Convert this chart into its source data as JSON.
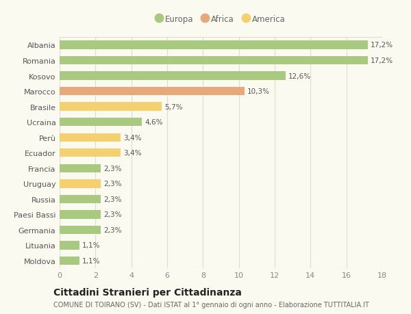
{
  "categories": [
    "Albania",
    "Romania",
    "Kosovo",
    "Marocco",
    "Brasile",
    "Ucraina",
    "Perù",
    "Ecuador",
    "Francia",
    "Uruguay",
    "Russia",
    "Paesi Bassi",
    "Germania",
    "Lituania",
    "Moldova"
  ],
  "values": [
    17.2,
    17.2,
    12.6,
    10.3,
    5.7,
    4.6,
    3.4,
    3.4,
    2.3,
    2.3,
    2.3,
    2.3,
    2.3,
    1.1,
    1.1
  ],
  "labels": [
    "17,2%",
    "17,2%",
    "12,6%",
    "10,3%",
    "5,7%",
    "4,6%",
    "3,4%",
    "3,4%",
    "2,3%",
    "2,3%",
    "2,3%",
    "2,3%",
    "2,3%",
    "1,1%",
    "1,1%"
  ],
  "continent": [
    "Europa",
    "Europa",
    "Europa",
    "Africa",
    "America",
    "Europa",
    "America",
    "America",
    "Europa",
    "America",
    "Europa",
    "Europa",
    "Europa",
    "Europa",
    "Europa"
  ],
  "colors": {
    "Europa": "#a8c97f",
    "Africa": "#e8a87c",
    "America": "#f5d06e"
  },
  "xlim": [
    0,
    18
  ],
  "xticks": [
    0,
    2,
    4,
    6,
    8,
    10,
    12,
    14,
    16,
    18
  ],
  "background_color": "#fafaf0",
  "grid_color": "#ddddcc",
  "bar_height": 0.55,
  "title": "Cittadini Stranieri per Cittadinanza",
  "subtitle": "COMUNE DI TOIRANO (SV) - Dati ISTAT al 1° gennaio di ogni anno - Elaborazione TUTTITALIA.IT",
  "label_fontsize": 7.5,
  "ytick_fontsize": 8,
  "xtick_fontsize": 8,
  "legend_fontsize": 8.5,
  "title_fontsize": 10,
  "subtitle_fontsize": 7
}
